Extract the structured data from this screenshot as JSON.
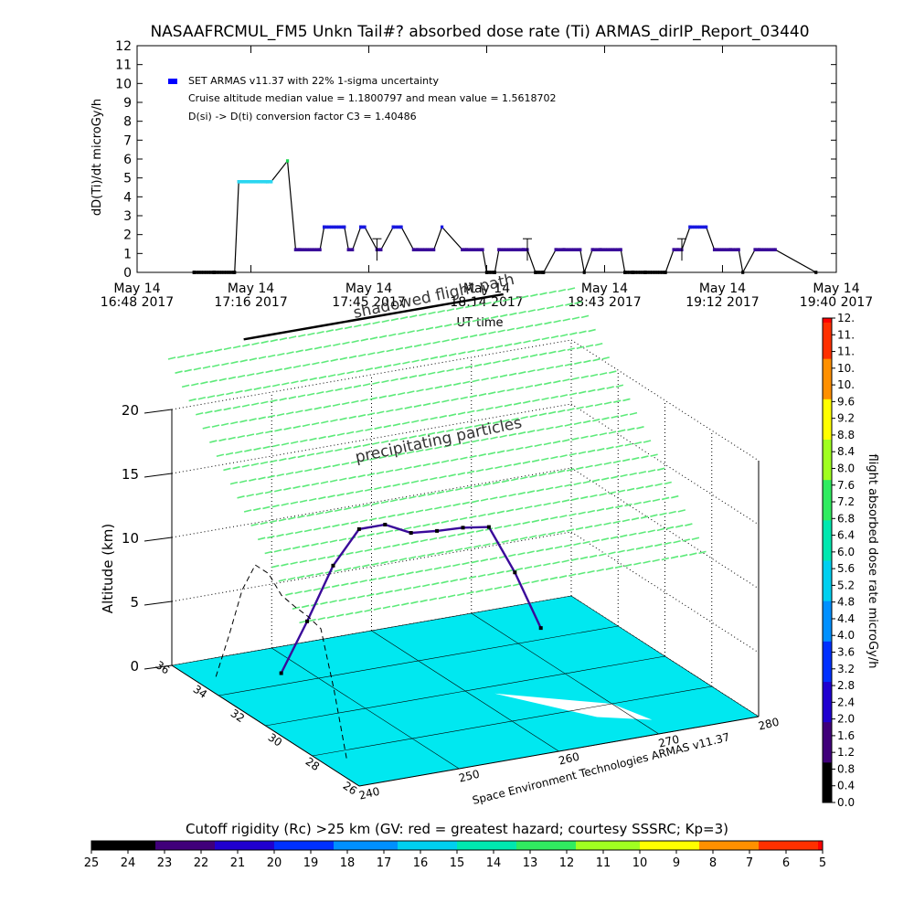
{
  "chart_data": [
    {
      "type": "line",
      "title": "NASAAFRCMUL_FM5 Unkn Tail#? absorbed dose rate (Ti) ARMAS_dirIP_Report_03440",
      "xlabel": "UT time",
      "ylabel": "dD(Ti)/dt microGy/h",
      "ylim": [
        0,
        12
      ],
      "yticks": [
        "0",
        "1",
        "2",
        "3",
        "4",
        "5",
        "6",
        "7",
        "8",
        "9",
        "10",
        "11",
        "12"
      ],
      "xlim_min": [
        1008,
        1180
      ],
      "xticks": [
        {
          "min": 1008,
          "line1": "May 14",
          "line2": "16:48 2017"
        },
        {
          "min": 1036,
          "line1": "May 14",
          "line2": "17:16 2017"
        },
        {
          "min": 1065,
          "line1": "May 14",
          "line2": "17:45 2017"
        },
        {
          "min": 1094,
          "line1": "May 14",
          "line2": "18:14 2017"
        },
        {
          "min": 1123,
          "line1": "May 14",
          "line2": "18:43 2017"
        },
        {
          "min": 1152,
          "line1": "May 14",
          "line2": "19:12 2017"
        },
        {
          "min": 1180,
          "line1": "May 14",
          "line2": "19:40 2017"
        }
      ],
      "legend": {
        "placement": "top-left",
        "series_label": "SET ARMAS v11.37 with 22% 1-sigma uncertainty",
        "note1": "Cruise altitude median value = 1.1800797 and mean value = 1.5618702",
        "note2": "D(si) -> D(ti) conversion factor C3 = 1.40486"
      },
      "series": [
        {
          "name": "SET ARMAS v11.37",
          "x_min": [
            1022,
            1027,
            1032,
            1033,
            1040,
            1041,
            1045,
            1047,
            1048,
            1053,
            1054,
            1059,
            1060,
            1061,
            1063,
            1064,
            1067,
            1068,
            1071,
            1073,
            1076,
            1077,
            1081,
            1083,
            1088,
            1089,
            1093,
            1094,
            1096,
            1097,
            1103,
            1104,
            1106,
            1108,
            1111,
            1113,
            1117,
            1118,
            1120,
            1122,
            1127,
            1128,
            1130,
            1133,
            1138,
            1140,
            1141,
            1142,
            1144,
            1148,
            1150,
            1154,
            1156,
            1157,
            1160,
            1161,
            1165,
            1175
          ],
          "y": [
            0,
            0,
            0,
            4.8,
            4.8,
            4.8,
            5.9,
            1.2,
            1.2,
            1.2,
            2.4,
            2.4,
            1.2,
            1.2,
            2.4,
            2.4,
            1.2,
            1.2,
            2.4,
            2.4,
            1.2,
            1.2,
            1.2,
            2.4,
            1.2,
            1.2,
            1.2,
            0,
            0,
            1.2,
            1.2,
            1.2,
            0,
            0,
            1.2,
            1.2,
            1.2,
            0,
            1.2,
            1.2,
            1.2,
            0,
            0,
            0,
            0,
            1.2,
            1.2,
            1.2,
            2.4,
            2.4,
            1.2,
            1.2,
            1.2,
            0,
            1.2,
            1.2,
            1.2,
            0
          ]
        }
      ],
      "error_bars_min": [
        1067,
        1104,
        1142
      ]
    },
    {
      "type": "3d-line",
      "annotations": {
        "shadowed_label": "shadowed flight path",
        "precipitating_label": "precipitating particles",
        "credit": "Space Environment Technologies ARMAS v11.37"
      },
      "zlabel": "Altitude (km)",
      "zticks": [
        "0",
        "5",
        "10",
        "15",
        "20"
      ],
      "lat_ticks": [
        "36",
        "34",
        "32",
        "30",
        "28",
        "26"
      ],
      "lon_ticks": [
        "240",
        "250",
        "260",
        "270",
        "280"
      ],
      "altitude_profile_km": [
        0.3,
        4.0,
        8.0,
        10.5,
        10.5,
        9.5,
        9.3,
        9.2,
        8.9,
        5.0,
        0.3
      ]
    },
    {
      "type": "colorbar",
      "title": "flight absorbed dose rate microGy/h",
      "range": [
        0.0,
        12.0
      ],
      "ticks": [
        "0.0",
        "0.4",
        "0.8",
        "1.2",
        "1.6",
        "2.0",
        "2.4",
        "2.8",
        "3.2",
        "3.6",
        "4.0",
        "4.4",
        "4.8",
        "5.2",
        "5.6",
        "6.0",
        "6.4",
        "6.8",
        "7.2",
        "7.6",
        "8.0",
        "8.4",
        "8.8",
        "9.2",
        "9.6",
        "10.",
        "10.",
        "11.",
        "11.",
        "12."
      ]
    },
    {
      "type": "colorbar",
      "title": "Cutoff rigidity (Rc) >25 km (GV: red = greatest hazard; courtesy SSSRC; Kp=3)",
      "ticks": [
        "25",
        "24",
        "23",
        "22",
        "21",
        "20",
        "19",
        "18",
        "17",
        "16",
        "15",
        "14",
        "13",
        "12",
        "11",
        "10",
        "9",
        "8",
        "7",
        "6",
        "5"
      ]
    }
  ],
  "colors": {
    "dose_points": "#0000ff",
    "rigidity_surface": "#00e8f0",
    "precip_particles": "#5dea7a",
    "flight_path": "#000000"
  }
}
